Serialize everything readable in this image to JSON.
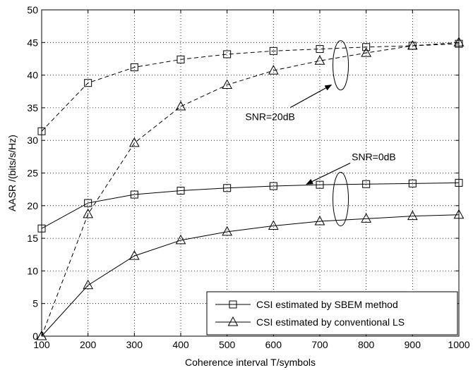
{
  "chart_data": {
    "type": "line",
    "xlabel": "Coherence interval T/symbols",
    "ylabel": "AASR /(bits/s/Hz)",
    "xlim": [
      100,
      1000
    ],
    "ylim": [
      0,
      50
    ],
    "xticks": [
      100,
      200,
      300,
      400,
      500,
      600,
      700,
      800,
      900,
      1000
    ],
    "yticks": [
      0,
      5,
      10,
      15,
      20,
      25,
      30,
      35,
      40,
      45,
      50
    ],
    "grid": true,
    "legend_position": "bottom-right",
    "legend": [
      {
        "label": "CSI estimated by SBEM method",
        "marker": "square"
      },
      {
        "label": "CSI estimated by conventional LS",
        "marker": "triangle"
      }
    ],
    "x": [
      100,
      200,
      300,
      400,
      500,
      600,
      700,
      800,
      900,
      1000
    ],
    "series": [
      {
        "legend_index": 0,
        "marker": "square",
        "line": "dashed",
        "group": "SNR=20dB",
        "values": [
          31.4,
          38.8,
          41.2,
          42.4,
          43.2,
          43.7,
          44.0,
          44.3,
          44.5,
          44.8
        ]
      },
      {
        "legend_index": 1,
        "marker": "triangle",
        "line": "dashed",
        "group": "SNR=20dB",
        "values": [
          0.0,
          18.7,
          29.6,
          35.2,
          38.5,
          40.7,
          42.2,
          43.4,
          44.5,
          45.0
        ]
      },
      {
        "legend_index": 0,
        "marker": "square",
        "line": "solid",
        "group": "SNR=0dB",
        "values": [
          16.5,
          20.4,
          21.7,
          22.3,
          22.7,
          23.0,
          23.2,
          23.3,
          23.4,
          23.5
        ]
      },
      {
        "legend_index": 1,
        "marker": "triangle",
        "line": "solid",
        "group": "SNR=0dB",
        "values": [
          0.0,
          7.8,
          12.3,
          14.7,
          16.0,
          16.9,
          17.6,
          18.0,
          18.4,
          18.6
        ]
      }
    ],
    "annotations": [
      {
        "text": "SNR=20dB",
        "ellipse_center": [
          745,
          41.5
        ],
        "arrow_to": [
          725,
          38.5
        ]
      },
      {
        "text": "SNR=0dB",
        "ellipse_center": [
          745,
          21.0
        ],
        "arrow_to": [
          720,
          23.5
        ]
      }
    ]
  }
}
